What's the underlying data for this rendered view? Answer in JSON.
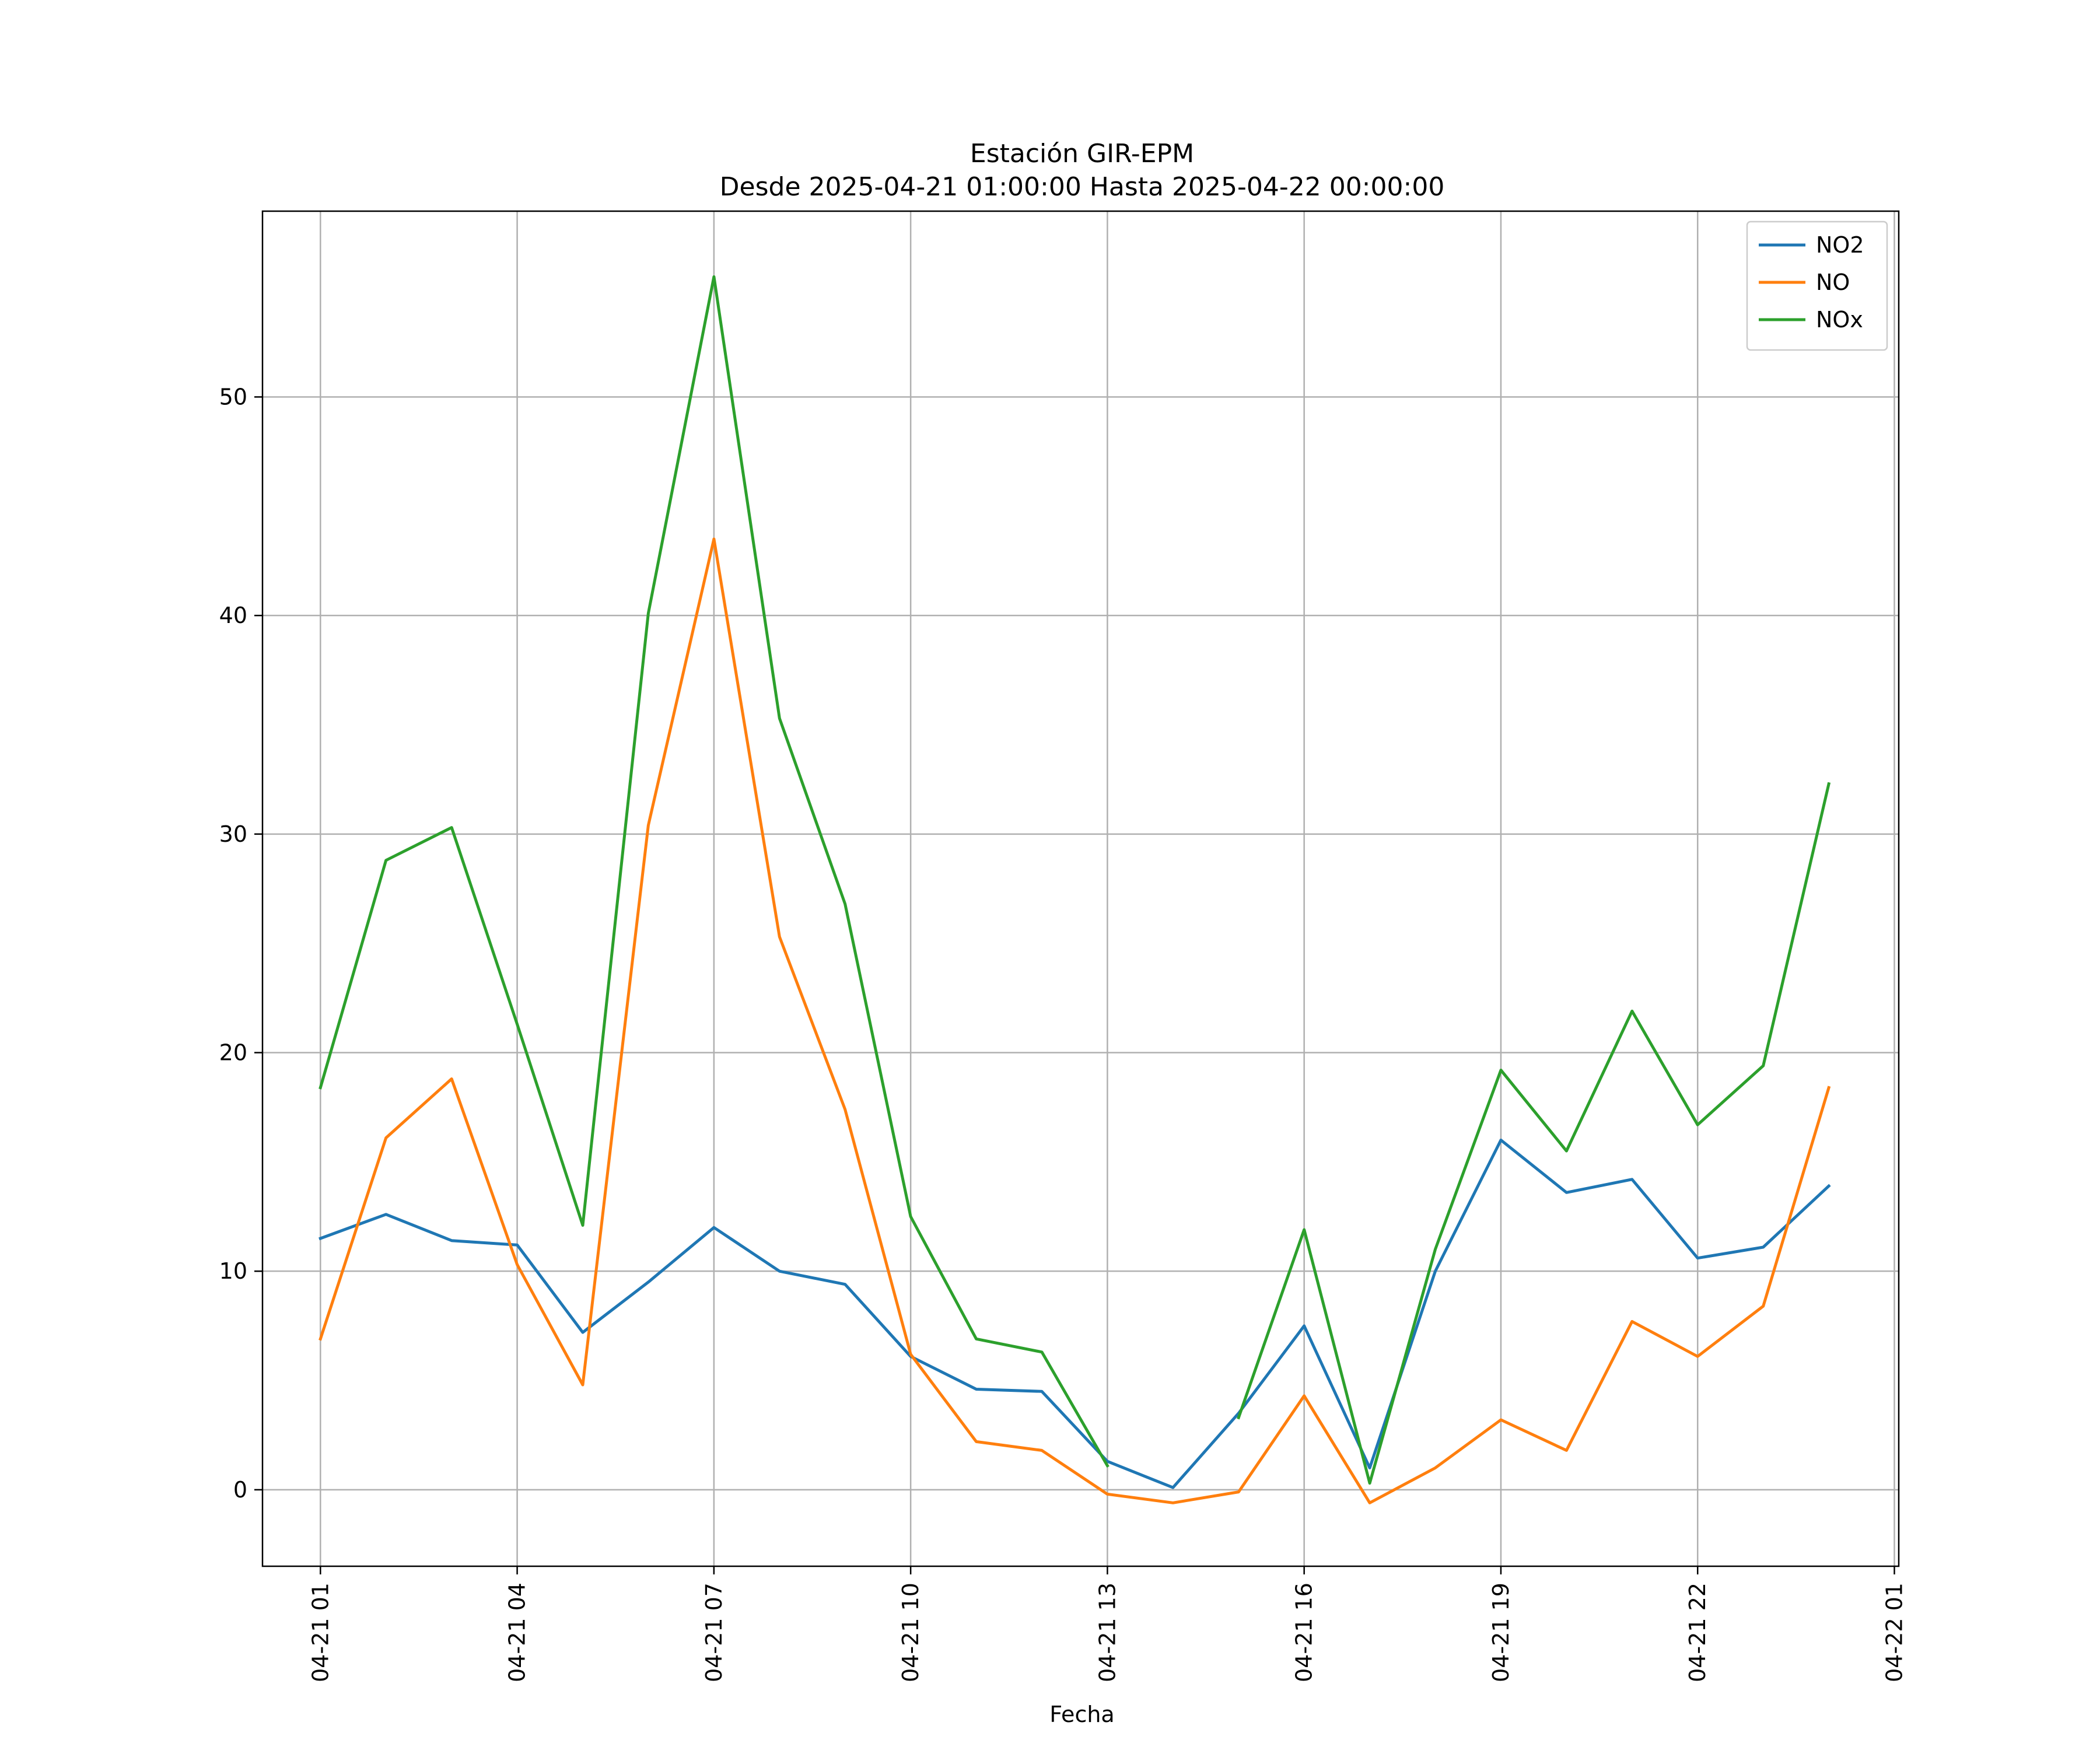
{
  "chart_data": {
    "type": "line",
    "title": "Estación GIR-EPM",
    "subtitle": "Desde 2025-04-21 01:00:00 Hasta 2025-04-22 00:00:00",
    "xlabel": "Fecha",
    "ylabel": "",
    "x": [
      "2025-04-21 01:00",
      "2025-04-21 02:00",
      "2025-04-21 03:00",
      "2025-04-21 04:00",
      "2025-04-21 05:00",
      "2025-04-21 06:00",
      "2025-04-21 07:00",
      "2025-04-21 08:00",
      "2025-04-21 09:00",
      "2025-04-21 10:00",
      "2025-04-21 11:00",
      "2025-04-21 12:00",
      "2025-04-21 13:00",
      "2025-04-21 14:00",
      "2025-04-21 15:00",
      "2025-04-21 16:00",
      "2025-04-21 17:00",
      "2025-04-21 18:00",
      "2025-04-21 19:00",
      "2025-04-21 20:00",
      "2025-04-21 21:00",
      "2025-04-21 22:00",
      "2025-04-21 23:00",
      "2025-04-22 00:00"
    ],
    "xlim": [
      "2025-04-21 00:07",
      "2025-04-22 01:04"
    ],
    "ylim": [
      -3.5,
      58.5
    ],
    "x_ticks": [
      {
        "value": "2025-04-21 01:00",
        "label": "04-21 01"
      },
      {
        "value": "2025-04-21 04:00",
        "label": "04-21 04"
      },
      {
        "value": "2025-04-21 07:00",
        "label": "04-21 07"
      },
      {
        "value": "2025-04-21 10:00",
        "label": "04-21 10"
      },
      {
        "value": "2025-04-21 13:00",
        "label": "04-21 13"
      },
      {
        "value": "2025-04-21 16:00",
        "label": "04-21 16"
      },
      {
        "value": "2025-04-21 19:00",
        "label": "04-21 19"
      },
      {
        "value": "2025-04-21 22:00",
        "label": "04-21 22"
      },
      {
        "value": "2025-04-22 01:00",
        "label": "04-22 01"
      }
    ],
    "y_ticks": [
      0,
      10,
      20,
      30,
      40,
      50
    ],
    "grid": true,
    "legend_position": "top-right",
    "series": [
      {
        "name": "NO2",
        "color": "#1f77b4",
        "values": [
          11.5,
          12.6,
          11.4,
          11.2,
          7.2,
          9.5,
          12.0,
          10.0,
          9.4,
          6.1,
          4.6,
          4.5,
          1.3,
          0.1,
          3.5,
          7.5,
          1.0,
          10.0,
          16.0,
          13.6,
          14.2,
          10.6,
          11.1,
          13.9
        ]
      },
      {
        "name": "NO",
        "color": "#ff7f0e",
        "values": [
          6.9,
          16.1,
          18.8,
          10.3,
          4.8,
          30.4,
          43.5,
          25.3,
          17.4,
          6.2,
          2.2,
          1.8,
          -0.2,
          -0.6,
          -0.1,
          4.3,
          -0.6,
          1.0,
          3.2,
          1.8,
          7.7,
          6.1,
          8.4,
          18.4
        ]
      },
      {
        "name": "NOx",
        "color": "#2ca02c",
        "values": [
          18.4,
          28.8,
          30.3,
          21.3,
          12.1,
          40.1,
          55.5,
          35.3,
          26.8,
          12.5,
          6.9,
          6.3,
          1.1,
          null,
          3.3,
          11.9,
          0.3,
          11.0,
          19.2,
          15.5,
          21.9,
          16.7,
          19.4,
          32.3
        ]
      }
    ]
  }
}
